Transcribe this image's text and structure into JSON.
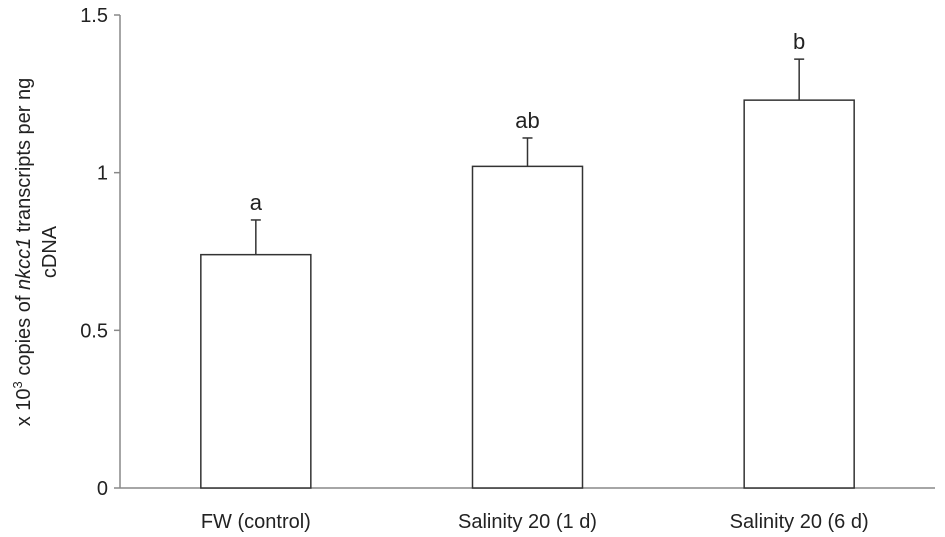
{
  "chart_data": {
    "type": "bar",
    "categories": [
      "FW (control)",
      "Salinity 20 (1 d)",
      "Salinity 20 (6 d)"
    ],
    "values": [
      0.74,
      1.02,
      1.23
    ],
    "error_upper": [
      0.85,
      1.11,
      1.36
    ],
    "significance": [
      "a",
      "ab",
      "b"
    ],
    "ylabel": {
      "prefix": "x 10",
      "superscript": "3",
      "mid": " copies of ",
      "italic": "nkcc1",
      "suffix": " transcripts per ng",
      "line2": "cDNA"
    },
    "ylim": [
      0,
      1.5
    ],
    "yticks": [
      0,
      0.5,
      1,
      1.5
    ],
    "ytick_labels": [
      "0",
      "0.5",
      "1",
      "1.5"
    ],
    "grid": false,
    "bar_color": "#ffffff",
    "edge_color": "#333333"
  }
}
